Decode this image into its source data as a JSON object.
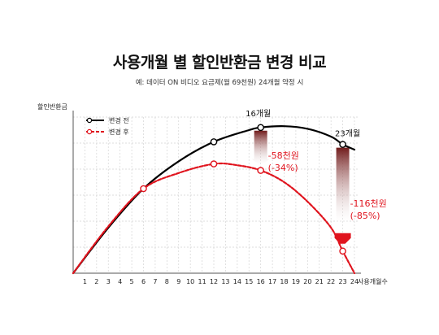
{
  "chart_data": {
    "type": "line",
    "title": "사용개월 별 할인반환금 변경 비교",
    "subtitle": "예: 데이터 ON 비디오 요금제(월 69천원) 24개월 약정 시",
    "xlabel": "사용개월수",
    "ylabel": "할인반환금",
    "x": [
      1,
      2,
      3,
      4,
      5,
      6,
      7,
      8,
      9,
      10,
      11,
      12,
      13,
      14,
      15,
      16,
      17,
      18,
      19,
      20,
      21,
      22,
      23,
      24
    ],
    "xlim": [
      0,
      24
    ],
    "ylim": [
      0,
      6
    ],
    "grid": true,
    "legend_position": "top-left",
    "series": [
      {
        "name": "변경 전",
        "color": "#000000",
        "style": "solid",
        "points": [
          [
            0,
            0
          ],
          [
            3,
            1.75
          ],
          [
            6,
            3.25
          ],
          [
            9,
            4.3
          ],
          [
            12,
            5.05
          ],
          [
            15,
            5.5
          ],
          [
            16,
            5.6
          ],
          [
            18,
            5.65
          ],
          [
            20,
            5.55
          ],
          [
            22,
            5.25
          ],
          [
            23,
            4.95
          ],
          [
            24,
            4.75
          ]
        ],
        "markers": [
          [
            12,
            5.05
          ],
          [
            16,
            5.6
          ],
          [
            23,
            4.95
          ]
        ]
      },
      {
        "name": "변경 후",
        "color": "#e0141e",
        "style": "dashed",
        "points": [
          [
            0,
            0
          ],
          [
            3,
            1.8
          ],
          [
            6,
            3.25
          ],
          [
            9,
            3.85
          ],
          [
            12,
            4.2
          ],
          [
            14,
            4.15
          ],
          [
            16,
            3.95
          ],
          [
            18,
            3.5
          ],
          [
            20,
            2.75
          ],
          [
            22,
            1.75
          ],
          [
            23,
            0.85
          ],
          [
            24,
            0
          ]
        ],
        "markers": [
          [
            6,
            3.25
          ],
          [
            12,
            4.2
          ],
          [
            16,
            3.95
          ],
          [
            23,
            0.85
          ]
        ]
      }
    ],
    "annotations": [
      {
        "month_label": "16개월",
        "x": 16,
        "drop_amount": "-58천원",
        "drop_percent": "(-34%)"
      },
      {
        "month_label": "23개월",
        "x": 23,
        "drop_amount": "-116천원",
        "drop_percent": "(-85%)"
      }
    ]
  }
}
